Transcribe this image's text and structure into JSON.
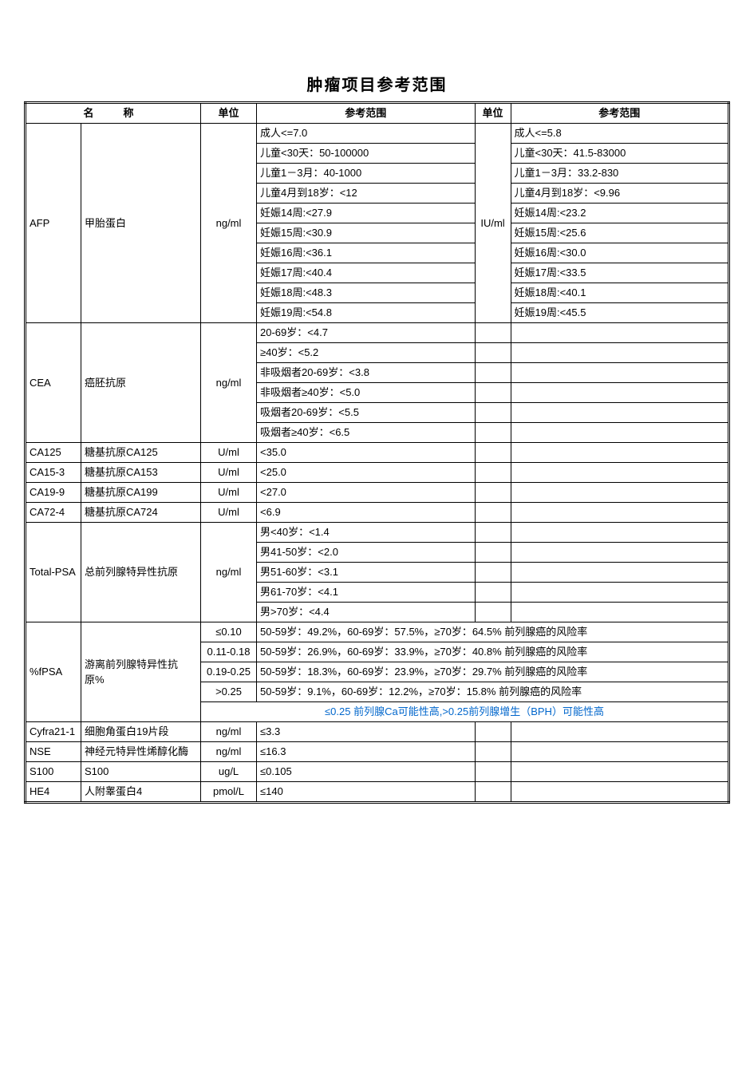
{
  "title": "肿瘤项目参考范围",
  "headers": {
    "name": "名　称",
    "unit": "单位",
    "ref": "参考范围",
    "unit2": "单位",
    "ref2": "参考范围"
  },
  "afp": {
    "code": "AFP",
    "name": "甲胎蛋白",
    "unit1": "ng/ml",
    "unit2": "IU/ml",
    "rows": [
      {
        "r1": "成人<=7.0",
        "r2": "成人<=5.8"
      },
      {
        "r1": "儿童<30天：50-100000",
        "r2": "儿童<30天：41.5-83000"
      },
      {
        "r1": "儿童1－3月：40-1000",
        "r2": "儿童1－3月：33.2-830"
      },
      {
        "r1": "儿童4月到18岁：<12",
        "r2": "儿童4月到18岁：<9.96"
      },
      {
        "r1": "妊娠14周:<27.9",
        "r2": "妊娠14周:<23.2"
      },
      {
        "r1": "妊娠15周:<30.9",
        "r2": "妊娠15周:<25.6"
      },
      {
        "r1": "妊娠16周:<36.1",
        "r2": "妊娠16周:<30.0"
      },
      {
        "r1": "妊娠17周:<40.4",
        "r2": "妊娠17周:<33.5"
      },
      {
        "r1": "妊娠18周:<48.3",
        "r2": "妊娠18周:<40.1"
      },
      {
        "r1": "妊娠19周:<54.8",
        "r2": "妊娠19周:<45.5"
      }
    ]
  },
  "cea": {
    "code": "CEA",
    "name": "癌胚抗原",
    "unit1": "ng/ml",
    "rows": [
      "20-69岁：<4.7",
      "≥40岁：<5.2",
      "非吸烟者20-69岁：<3.8",
      "非吸烟者≥40岁：<5.0",
      "吸烟者20-69岁：<5.5",
      "吸烟者≥40岁：<6.5"
    ]
  },
  "simple": [
    {
      "code": "CA125",
      "name": "糖基抗原CA125",
      "unit": "U/ml",
      "ref": "<35.0"
    },
    {
      "code": "CA15-3",
      "name": "糖基抗原CA153",
      "unit": "U/ml",
      "ref": "<25.0"
    },
    {
      "code": "CA19-9",
      "name": "糖基抗原CA199",
      "unit": "U/ml",
      "ref": "<27.0"
    },
    {
      "code": "CA72-4",
      "name": "糖基抗原CA724",
      "unit": "U/ml",
      "ref": "<6.9"
    }
  ],
  "tpsa": {
    "code": "Total-PSA",
    "name": "总前列腺特异性抗原",
    "unit": "ng/ml",
    "rows": [
      "男<40岁：<1.4",
      "男41-50岁：<2.0",
      "男51-60岁：<3.1",
      "男61-70岁：<4.1",
      "男>70岁：<4.4"
    ]
  },
  "fpsa": {
    "code": "%fPSA",
    "name": "游离前列腺特异性抗原%",
    "rows": [
      {
        "u": "≤0.10",
        "r": "50-59岁：49.2%，60-69岁：57.5%，≥70岁：64.5%  前列腺癌的风险率"
      },
      {
        "u": "0.11-0.18",
        "r": "50-59岁：26.9%，60-69岁：33.9%，≥70岁：40.8%  前列腺癌的风险率"
      },
      {
        "u": "0.19-0.25",
        "r": "50-59岁：18.3%，60-69岁：23.9%，≥70岁：29.7%  前列腺癌的风险率"
      },
      {
        "u": ">0.25",
        "r": "50-59岁：9.1%，60-69岁：12.2%，≥70岁：15.8%  前列腺癌的风险率"
      }
    ],
    "note": "≤0.25 前列腺Ca可能性高,>0.25前列腺增生（BPH）可能性高"
  },
  "tail": [
    {
      "code": "Cyfra21-1",
      "name": "细胞角蛋白19片段",
      "unit": "ng/ml",
      "ref": "≤3.3"
    },
    {
      "code": "NSE",
      "name": "神经元特异性烯醇化酶",
      "unit": "ng/ml",
      "ref": "≤16.3"
    },
    {
      "code": "S100",
      "name": "S100",
      "unit": "ug/L",
      "ref": "≤0.105"
    },
    {
      "code": "HE4",
      "name": "人附睾蛋白4",
      "unit": "pmol/L",
      "ref": "≤140"
    }
  ],
  "colors": {
    "text": "#000000",
    "note": "#0066cc",
    "background": "#ffffff",
    "border": "#000000"
  }
}
